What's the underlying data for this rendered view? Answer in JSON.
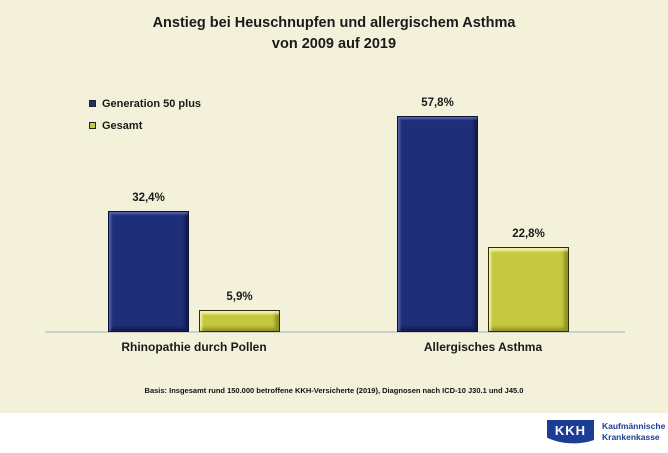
{
  "title": {
    "line1": "Anstieg bei Heuschnupfen und allergischem Asthma",
    "line2": "von 2009 auf 2019"
  },
  "chart_data": {
    "type": "bar",
    "categories": [
      "Rhinopathie durch Pollen",
      "Allergisches Asthma"
    ],
    "series": [
      {
        "name": "Generation 50 plus",
        "values": [
          32.4,
          57.8
        ],
        "labels": [
          "32,4%",
          "57,8%"
        ],
        "color": "#1E2E78"
      },
      {
        "name": "Gesamt",
        "values": [
          5.9,
          22.8
        ],
        "labels": [
          "5,9%",
          "22,8%"
        ],
        "color": "#C6C840"
      }
    ],
    "title": "Anstieg bei Heuschnupfen und allergischem Asthma von 2009 auf 2019",
    "xlabel": "",
    "ylabel": "",
    "ylim": [
      0,
      60
    ],
    "grid": false,
    "legend_position": "top-left",
    "value_suffix": "%"
  },
  "footnote": "Basis: Insgesamt rund 150.000 betroffene KKH-Versicherte (2019), Diagnosen nach ICD-10 J30.1 und J45.0",
  "logo": {
    "abbr": "KKH",
    "name_line1": "Kaufmännische",
    "name_line2": "Krankenkasse",
    "color": "#1C3D96"
  },
  "colors": {
    "background": "#F3F1DA",
    "bar_blue": "#1E2E78",
    "bar_yellow": "#C6C840",
    "axis_line": "#CFCFC8",
    "text": "#1A1A1A"
  }
}
